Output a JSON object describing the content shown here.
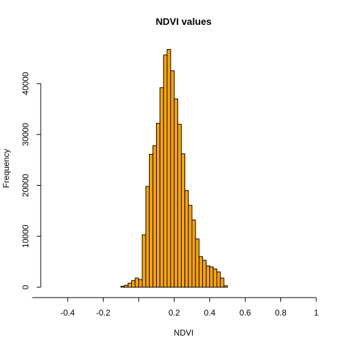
{
  "chart_data": {
    "type": "bar",
    "title": "NDVI values",
    "xlabel": "NDVI",
    "ylabel": "Frequency",
    "xlim": [
      -0.6,
      1.0
    ],
    "ylim": [
      0,
      48000
    ],
    "x_ticks": [
      {
        "value": -0.4,
        "label": "-0.4"
      },
      {
        "value": -0.2,
        "label": "-0.2"
      },
      {
        "value": 0.0,
        "label": ""
      },
      {
        "value": 0.2,
        "label": "0.2"
      },
      {
        "value": 0.4,
        "label": "0.4"
      },
      {
        "value": 0.6,
        "label": "0.6"
      },
      {
        "value": 0.8,
        "label": "0.8"
      },
      {
        "value": 1.0,
        "label": "1"
      }
    ],
    "y_ticks": [
      {
        "value": 0,
        "label": "0"
      },
      {
        "value": 10000,
        "label": "10000"
      },
      {
        "value": 20000,
        "label": "20000"
      },
      {
        "value": 30000,
        "label": "30000"
      },
      {
        "value": 40000,
        "label": "40000"
      }
    ],
    "bin_width": 0.02,
    "bins_start": -0.1,
    "values": [
      200,
      400,
      800,
      1300,
      1800,
      1500,
      10300,
      19800,
      26100,
      27800,
      32200,
      39200,
      45600,
      46700,
      42500,
      37000,
      32000,
      26200,
      19000,
      16100,
      13200,
      9500,
      6000,
      5300,
      4200,
      4000,
      3600,
      3000,
      1800,
      300
    ],
    "bar_color": "#FFA500",
    "grid": false,
    "legend": "none"
  }
}
